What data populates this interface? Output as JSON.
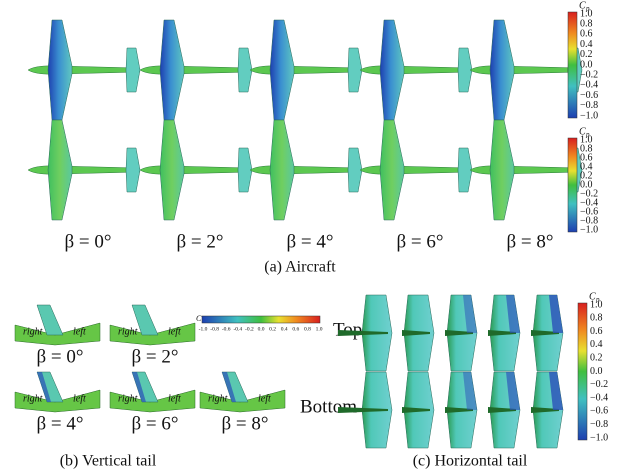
{
  "panel_a": {
    "colorbar_top": {
      "symbol": "C",
      "subscript": "p",
      "ticks": [
        "1.0",
        "0.8",
        "0.6",
        "0.4",
        "0.2",
        "0.0",
        "−0.2",
        "−0.4",
        "−0.6",
        "−0.8",
        "−1.0"
      ]
    },
    "colorbar_bottom": {
      "symbol": "C",
      "subscript": "p",
      "ticks": [
        "1.0",
        "0.8",
        "0.6",
        "0.4",
        "0.2",
        "0.0",
        "−0.2",
        "−0.4",
        "−0.6",
        "−0.8",
        "−1.0"
      ]
    },
    "labels": [
      "β = 0°",
      "β = 2°",
      "β = 4°",
      "β = 6°",
      "β = 8°"
    ],
    "caption": "(a) Aircraft"
  },
  "panel_b": {
    "images": [
      {
        "right": "right",
        "left": "left",
        "label": "β = 0°"
      },
      {
        "right": "right",
        "left": "left",
        "label": "β = 2°"
      },
      {
        "right": "right",
        "left": "left",
        "label": "β = 4°"
      },
      {
        "right": "right",
        "left": "left",
        "label": "β = 6°"
      },
      {
        "right": "right",
        "left": "left",
        "label": "β = 8°"
      }
    ],
    "colorbar": {
      "symbol": "C",
      "ticks": [
        "-1.0",
        "-0.8",
        "-0.6",
        "-0.4",
        "-0.2",
        "0.0",
        "0.2",
        "0.4",
        "0.6",
        "0.8",
        "1.0"
      ]
    },
    "caption": "(b) Vertical tail"
  },
  "panel_c": {
    "rows": [
      "Top",
      "Bottom"
    ],
    "colorbar": {
      "symbol": "C",
      "subscript": "p",
      "ticks": [
        "1.0",
        "0.8",
        "0.6",
        "0.4",
        "0.2",
        "0.0",
        "−0.2",
        "−0.4",
        "−0.6",
        "−0.8",
        "−1.0"
      ]
    },
    "caption": "(c) Horizontal tail"
  }
}
